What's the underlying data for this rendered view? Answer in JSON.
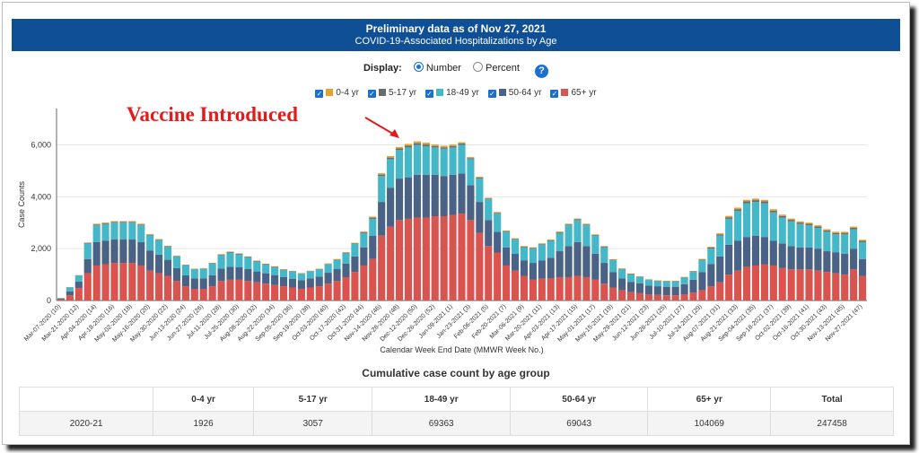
{
  "header": {
    "title": "Preliminary data as of Nov 27, 2021",
    "subtitle": "COVID-19-Associated Hospitalizations by Age"
  },
  "display": {
    "label": "Display:",
    "option_number": "Number",
    "option_percent": "Percent",
    "selected": "Number"
  },
  "annotation": "Vaccine Introduced",
  "chart_data": {
    "type": "bar",
    "stacked": true,
    "ylabel": "Case Counts",
    "xlabel": "Calendar Week End Date (MMWR Week No.)",
    "ylim": [
      0,
      7400
    ],
    "yticks": [
      "0",
      "2,000",
      "4,000",
      "6,000"
    ],
    "yticks_values": [
      0,
      2000,
      4000,
      6000
    ],
    "grid": true,
    "legend_position": "top",
    "xticks": [
      {
        "i": 0,
        "label": "Mar-07-2020 (10)"
      },
      {
        "i": 2,
        "label": "Mar-21-2020 (12)"
      },
      {
        "i": 4,
        "label": "Apr-04-2020 (14)"
      },
      {
        "i": 6,
        "label": "Apr-18-2020 (16)"
      },
      {
        "i": 8,
        "label": "May-02-2020 (18)"
      },
      {
        "i": 10,
        "label": "May-16-2020 (20)"
      },
      {
        "i": 12,
        "label": "May-30-2020 (22)"
      },
      {
        "i": 14,
        "label": "Jun-13-2020 (24)"
      },
      {
        "i": 16,
        "label": "Jun-27-2020 (26)"
      },
      {
        "i": 18,
        "label": "Jul-11-2020 (28)"
      },
      {
        "i": 20,
        "label": "Jul-25-2020 (30)"
      },
      {
        "i": 22,
        "label": "Aug-08-2020 (32)"
      },
      {
        "i": 24,
        "label": "Aug-22-2020 (34)"
      },
      {
        "i": 26,
        "label": "Sep-05-2020 (36)"
      },
      {
        "i": 28,
        "label": "Sep-19-2020 (38)"
      },
      {
        "i": 30,
        "label": "Oct-03-2020 (40)"
      },
      {
        "i": 32,
        "label": "Oct-17-2020 (42)"
      },
      {
        "i": 34,
        "label": "Oct-31-2020 (44)"
      },
      {
        "i": 36,
        "label": "Nov-14-2020 (46)"
      },
      {
        "i": 38,
        "label": "Nov-28-2020 (48)"
      },
      {
        "i": 40,
        "label": "Dec-12-2020 (50)"
      },
      {
        "i": 42,
        "label": "Dec-26-2020 (52)"
      },
      {
        "i": 44,
        "label": "Jan-09-2021 (1)"
      },
      {
        "i": 46,
        "label": "Jan-23-2021 (3)"
      },
      {
        "i": 48,
        "label": "Feb-06-2021 (5)"
      },
      {
        "i": 50,
        "label": "Feb-20-2021 (7)"
      },
      {
        "i": 52,
        "label": "Mar-06-2021 (9)"
      },
      {
        "i": 54,
        "label": "Mar-20-2021 (11)"
      },
      {
        "i": 56,
        "label": "Apr-03-2021 (13)"
      },
      {
        "i": 58,
        "label": "Apr-17-2021 (15)"
      },
      {
        "i": 60,
        "label": "May-01-2021 (17)"
      },
      {
        "i": 62,
        "label": "May-15-2021 (19)"
      },
      {
        "i": 64,
        "label": "May-29-2021 (21)"
      },
      {
        "i": 66,
        "label": "Jun-12-2021 (23)"
      },
      {
        "i": 68,
        "label": "Jun-26-2021 (25)"
      },
      {
        "i": 70,
        "label": "Jul-10-2021 (27)"
      },
      {
        "i": 72,
        "label": "Jul-24-2021 (29)"
      },
      {
        "i": 74,
        "label": "Aug-07-2021 (31)"
      },
      {
        "i": 76,
        "label": "Aug-21-2021 (33)"
      },
      {
        "i": 78,
        "label": "Sep-04-2021 (35)"
      },
      {
        "i": 80,
        "label": "Sep-18-2021 (37)"
      },
      {
        "i": 82,
        "label": "Oct-02-2021 (39)"
      },
      {
        "i": 84,
        "label": "Oct-16-2021 (41)"
      },
      {
        "i": 86,
        "label": "Oct-30-2021 (43)"
      },
      {
        "i": 88,
        "label": "Nov-13-2021 (45)"
      },
      {
        "i": 90,
        "label": "Nov-27-2021 (47)"
      }
    ],
    "series": [
      {
        "name": "0-4 yr",
        "color": "#e6a12f",
        "values": [
          5,
          10,
          10,
          20,
          30,
          30,
          30,
          30,
          30,
          30,
          25,
          25,
          20,
          15,
          15,
          15,
          15,
          15,
          20,
          20,
          20,
          20,
          20,
          20,
          20,
          15,
          15,
          15,
          15,
          15,
          20,
          20,
          20,
          25,
          30,
          40,
          50,
          60,
          60,
          70,
          70,
          70,
          60,
          60,
          60,
          50,
          40,
          35,
          30,
          30,
          25,
          25,
          25,
          25,
          30,
          30,
          30,
          30,
          30,
          30,
          25,
          25,
          20,
          20,
          20,
          15,
          15,
          15,
          15,
          15,
          15,
          20,
          25,
          30,
          40,
          50,
          60,
          60,
          60,
          60,
          55,
          50,
          50,
          45,
          45,
          45,
          45,
          45,
          45,
          45,
          40
        ]
      },
      {
        "name": "5-17 yr",
        "color": "#6b6b6b",
        "values": [
          5,
          10,
          10,
          20,
          30,
          30,
          30,
          30,
          30,
          30,
          25,
          25,
          20,
          15,
          15,
          15,
          15,
          15,
          20,
          20,
          20,
          20,
          20,
          20,
          20,
          15,
          15,
          15,
          15,
          15,
          20,
          20,
          25,
          30,
          35,
          45,
          55,
          60,
          60,
          65,
          65,
          65,
          55,
          55,
          55,
          50,
          40,
          35,
          30,
          30,
          25,
          25,
          25,
          25,
          25,
          25,
          30,
          30,
          30,
          30,
          25,
          25,
          20,
          20,
          20,
          15,
          15,
          15,
          15,
          15,
          15,
          20,
          30,
          40,
          50,
          60,
          70,
          70,
          70,
          70,
          65,
          60,
          60,
          55,
          55,
          55,
          55,
          55,
          55,
          55,
          50
        ]
      },
      {
        "name": "18-49 yr",
        "color": "#44b7c9",
        "values": [
          20,
          150,
          230,
          600,
          650,
          650,
          650,
          650,
          650,
          650,
          580,
          550,
          500,
          450,
          380,
          350,
          370,
          450,
          520,
          550,
          500,
          450,
          380,
          330,
          300,
          270,
          270,
          250,
          270,
          280,
          320,
          350,
          400,
          470,
          550,
          650,
          1000,
          1100,
          1100,
          1150,
          1150,
          1100,
          1050,
          1050,
          1050,
          1100,
          1000,
          900,
          800,
          700,
          600,
          550,
          500,
          550,
          600,
          650,
          700,
          800,
          850,
          800,
          700,
          600,
          450,
          350,
          280,
          250,
          210,
          200,
          200,
          200,
          250,
          300,
          450,
          600,
          800,
          1000,
          1150,
          1300,
          1300,
          1300,
          1100,
          1000,
          950,
          900,
          850,
          800,
          750,
          700,
          750,
          750,
          650
        ]
      },
      {
        "name": "50-64 yr",
        "color": "#4a6286",
        "values": [
          20,
          150,
          250,
          550,
          900,
          900,
          900,
          900,
          900,
          900,
          780,
          720,
          620,
          500,
          420,
          400,
          400,
          420,
          480,
          500,
          480,
          460,
          420,
          400,
          380,
          360,
          340,
          330,
          350,
          370,
          420,
          460,
          520,
          600,
          700,
          900,
          1300,
          1500,
          1600,
          1600,
          1650,
          1650,
          1600,
          1550,
          1550,
          1550,
          1350,
          1200,
          1000,
          800,
          700,
          650,
          600,
          650,
          700,
          800,
          1000,
          1200,
          1300,
          1200,
          1000,
          800,
          600,
          450,
          400,
          380,
          350,
          330,
          330,
          330,
          400,
          500,
          700,
          850,
          1000,
          1150,
          1150,
          1150,
          1150,
          1050,
          950,
          950,
          900,
          850,
          850,
          850,
          800,
          800,
          800,
          800,
          650
        ]
      },
      {
        "name": "65+ yr",
        "color": "#d9534f",
        "values": [
          50,
          200,
          480,
          1050,
          1350,
          1400,
          1450,
          1450,
          1450,
          1350,
          1150,
          1050,
          950,
          750,
          550,
          450,
          450,
          550,
          750,
          800,
          800,
          750,
          700,
          650,
          600,
          550,
          500,
          450,
          500,
          550,
          650,
          750,
          900,
          1100,
          1350,
          1600,
          2500,
          2850,
          3100,
          3150,
          3200,
          3200,
          3250,
          3250,
          3300,
          3350,
          3100,
          2600,
          2100,
          1850,
          1350,
          1150,
          950,
          800,
          850,
          850,
          900,
          900,
          950,
          900,
          800,
          650,
          500,
          400,
          320,
          280,
          230,
          220,
          200,
          200,
          230,
          300,
          400,
          550,
          700,
          1000,
          1150,
          1300,
          1350,
          1400,
          1350,
          1250,
          1200,
          1200,
          1200,
          1150,
          1100,
          1050,
          1000,
          1200,
          950
        ]
      }
    ]
  },
  "table": {
    "title": "Cumulative case count by age group",
    "headers": [
      "",
      "0-4 yr",
      "5-17 yr",
      "18-49 yr",
      "50-64 yr",
      "65+ yr",
      "Total"
    ],
    "row": [
      "2020-21",
      "1926",
      "3057",
      "69363",
      "69043",
      "104069",
      "247458"
    ]
  }
}
